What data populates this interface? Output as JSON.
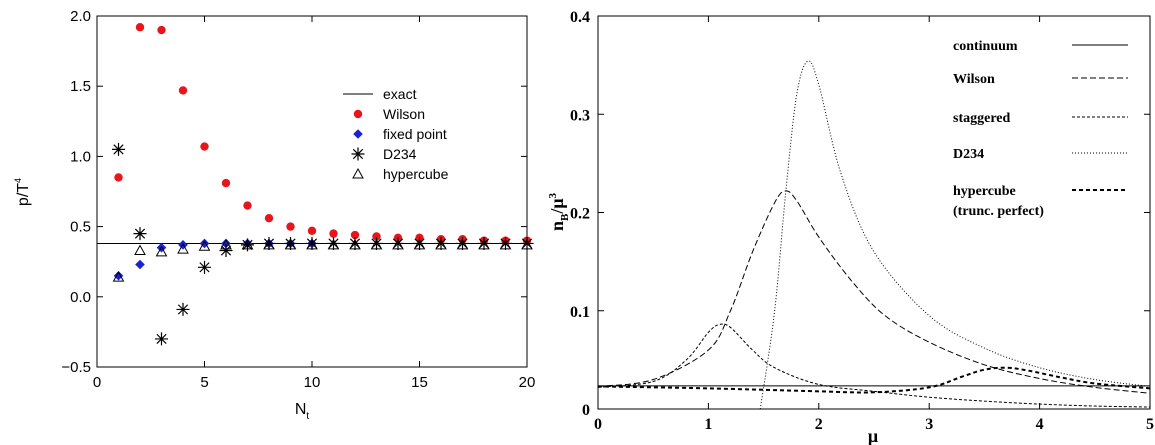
{
  "chart_data": [
    {
      "type": "scatter",
      "title": "",
      "xlabel": "N",
      "xlabel_sub": "t",
      "ylabel": "p/T",
      "ylabel_sup": "4",
      "xlim": [
        0,
        20
      ],
      "ylim": [
        -0.5,
        2.0
      ],
      "xticks": [
        "0",
        "5",
        "10",
        "15",
        "20"
      ],
      "yticks": [
        "−0.5",
        "0.0",
        "0.5",
        "1.0",
        "1.5",
        "2.0"
      ],
      "grid": false,
      "legend_position": "upper-right",
      "series": [
        {
          "name": "exact",
          "kind": "line",
          "color": "#000000",
          "y": 0.38
        },
        {
          "name": "Wilson",
          "marker": "circle",
          "color": "#e8161b",
          "x": [
            1,
            2,
            3,
            4,
            5,
            6,
            7,
            8,
            9,
            10,
            11,
            12,
            13,
            14,
            15,
            16,
            17,
            18,
            19,
            20
          ],
          "y": [
            0.85,
            1.92,
            1.9,
            1.47,
            1.07,
            0.81,
            0.65,
            0.56,
            0.5,
            0.47,
            0.45,
            0.44,
            0.43,
            0.42,
            0.42,
            0.41,
            0.41,
            0.4,
            0.4,
            0.4
          ]
        },
        {
          "name": "fixed point",
          "marker": "diamond",
          "color": "#1a22d6",
          "x": [
            1,
            2,
            3,
            4,
            5,
            6,
            7,
            8,
            9,
            10
          ],
          "y": [
            0.15,
            0.23,
            0.35,
            0.37,
            0.38,
            0.38,
            0.38,
            0.38,
            0.38,
            0.38
          ]
        },
        {
          "name": "D234",
          "marker": "star",
          "color": "#000000",
          "x": [
            1,
            2,
            3,
            4,
            5,
            6,
            7,
            8,
            9,
            10,
            11,
            12,
            13,
            14,
            15,
            16,
            17,
            18,
            19,
            20
          ],
          "y": [
            1.05,
            0.45,
            -0.3,
            -0.09,
            0.21,
            0.33,
            0.37,
            0.38,
            0.38,
            0.38,
            0.38,
            0.38,
            0.38,
            0.38,
            0.38,
            0.38,
            0.38,
            0.38,
            0.38,
            0.38
          ]
        },
        {
          "name": "hypercube",
          "marker": "triangle",
          "color": "#000000",
          "x": [
            1,
            2,
            3,
            4,
            5,
            6,
            7,
            8,
            9,
            10,
            11,
            12,
            13,
            14,
            15,
            16,
            17,
            18,
            19,
            20
          ],
          "y": [
            0.14,
            0.33,
            0.32,
            0.34,
            0.36,
            0.37,
            0.37,
            0.37,
            0.37,
            0.37,
            0.37,
            0.37,
            0.37,
            0.37,
            0.37,
            0.37,
            0.37,
            0.37,
            0.37,
            0.37
          ]
        }
      ]
    },
    {
      "type": "line",
      "title": "",
      "xlabel": "μ",
      "ylabel": "n",
      "ylabel_sub": "B",
      "ylabel_tail": "/μ",
      "ylabel_sup": "3",
      "xlim": [
        0,
        5
      ],
      "ylim": [
        0,
        0.4
      ],
      "xticks": [
        "0",
        "1",
        "2",
        "3",
        "4",
        "5"
      ],
      "yticks": [
        "0",
        "0.1",
        "0.2",
        "0.3",
        "0.4"
      ],
      "grid": false,
      "legend_position": "upper-right",
      "series": [
        {
          "name": "continuum",
          "style": "solid",
          "x": [
            0,
            5
          ],
          "y": [
            0.0235,
            0.0235
          ]
        },
        {
          "name": "Wilson",
          "style": "dashed",
          "x": [
            0,
            0.5,
            1.0,
            1.2,
            1.4,
            1.6,
            1.7,
            1.8,
            2.0,
            2.3,
            2.6,
            3.0,
            3.5,
            4.0,
            4.5,
            5.0
          ],
          "y": [
            0.023,
            0.03,
            0.06,
            0.1,
            0.16,
            0.21,
            0.222,
            0.212,
            0.175,
            0.13,
            0.095,
            0.068,
            0.045,
            0.031,
            0.022,
            0.016
          ]
        },
        {
          "name": "staggered",
          "style": "fine-dashed",
          "x": [
            0,
            0.5,
            0.8,
            1.0,
            1.1,
            1.2,
            1.4,
            1.6,
            2.0,
            2.5,
            3.0,
            3.5,
            4.0,
            4.5,
            5.0
          ],
          "y": [
            0.022,
            0.028,
            0.05,
            0.078,
            0.086,
            0.083,
            0.06,
            0.042,
            0.025,
            0.018,
            0.012,
            0.008,
            0.005,
            0.003,
            0.002
          ]
        },
        {
          "name": "D234",
          "style": "dotted",
          "x": [
            1.47,
            1.6,
            1.7,
            1.8,
            1.9,
            2.0,
            2.2,
            2.5,
            3.0,
            3.5,
            4.0,
            4.5,
            5.0
          ],
          "y": [
            0.0,
            0.1,
            0.22,
            0.32,
            0.354,
            0.33,
            0.24,
            0.16,
            0.095,
            0.062,
            0.042,
            0.03,
            0.023
          ]
        },
        {
          "name": "hypercube (trunc. perfect)",
          "label_lines": [
            "hypercube",
            "(trunc. perfect)"
          ],
          "style": "bold-dashed",
          "x": [
            0,
            1.0,
            2.0,
            2.5,
            3.0,
            3.3,
            3.5,
            3.7,
            3.9,
            4.2,
            4.5,
            5.0
          ],
          "y": [
            0.023,
            0.021,
            0.018,
            0.017,
            0.022,
            0.033,
            0.04,
            0.042,
            0.039,
            0.032,
            0.026,
            0.021
          ]
        }
      ]
    }
  ]
}
